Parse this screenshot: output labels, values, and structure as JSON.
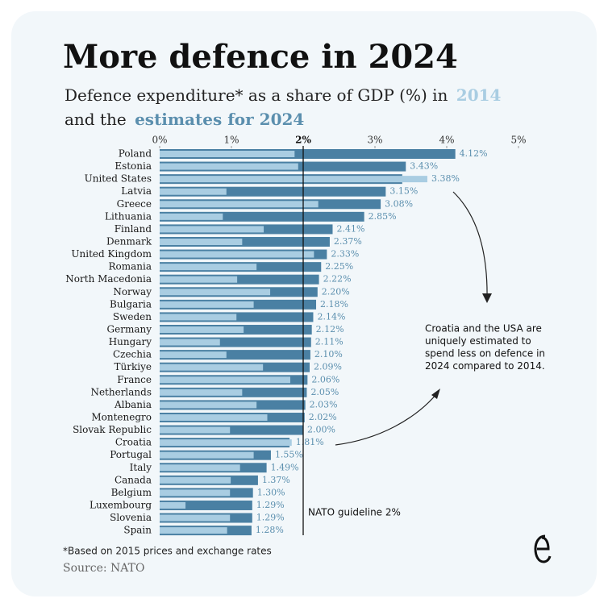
{
  "chart_data": {
    "type": "bar",
    "orientation": "horizontal",
    "title": "More defence in 2024",
    "subtitle": [
      "Defence expenditure* as a share of GDP (%) in",
      "and the"
    ],
    "categories": [
      "Poland",
      "Estonia",
      "United States",
      "Latvia",
      "Greece",
      "Lithuania",
      "Finland",
      "Denmark",
      "United Kingdom",
      "Romania",
      "North Macedonia",
      "Norway",
      "Bulgaria",
      "Sweden",
      "Germany",
      "Hungary",
      "Czechia",
      "Türkiye",
      "France",
      "Netherlands",
      "Albania",
      "Montenegro",
      "Slovak Republic",
      "Croatia",
      "Portugal",
      "Italy",
      "Canada",
      "Belgium",
      "Luxembourg",
      "Slovenia",
      "Spain"
    ],
    "series": [
      {
        "name": "2014",
        "color": "#a9cde2",
        "values": [
          1.88,
          1.93,
          3.73,
          0.93,
          2.21,
          0.88,
          1.45,
          1.15,
          2.15,
          1.35,
          1.08,
          1.54,
          1.31,
          1.07,
          1.17,
          0.84,
          0.93,
          1.44,
          1.82,
          1.15,
          1.35,
          1.5,
          0.98,
          1.84,
          1.31,
          1.12,
          0.99,
          0.98,
          0.36,
          0.98,
          0.94
        ]
      },
      {
        "name": "estimates for 2024",
        "color": "#4a80a3",
        "values": [
          4.12,
          3.43,
          3.38,
          3.15,
          3.08,
          2.85,
          2.41,
          2.37,
          2.33,
          2.25,
          2.22,
          2.2,
          2.18,
          2.14,
          2.12,
          2.11,
          2.1,
          2.09,
          2.06,
          2.05,
          2.03,
          2.02,
          2.0,
          1.81,
          1.55,
          1.49,
          1.37,
          1.3,
          1.29,
          1.29,
          1.28
        ],
        "value_labels": [
          "4.12%",
          "3.43%",
          "3.38%",
          "3.15%",
          "3.08%",
          "2.85%",
          "2.41%",
          "2.37%",
          "2.33%",
          "2.25%",
          "2.22%",
          "2.20%",
          "2.18%",
          "2.14%",
          "2.12%",
          "2.11%",
          "2.10%",
          "2.09%",
          "2.06%",
          "2.05%",
          "2.03%",
          "2.02%",
          "2.00%",
          "1.81%",
          "1.55%",
          "1.49%",
          "1.37%",
          "1.30%",
          "1.29%",
          "1.29%",
          "1.28%"
        ]
      }
    ],
    "xlim": [
      0,
      5
    ],
    "xticks": [
      {
        "value": 0,
        "label": "0%"
      },
      {
        "value": 1,
        "label": "1%"
      },
      {
        "value": 2,
        "label": "2%"
      },
      {
        "value": 3,
        "label": "3%"
      },
      {
        "value": 4,
        "label": "4%"
      },
      {
        "value": 5,
        "label": "5%"
      }
    ],
    "reference_line": {
      "value": 2,
      "label": "NATO guideline 2%"
    },
    "annotation": [
      "Croatia and the USA are",
      "uniquely estimated to",
      "spend less on defence in",
      "2024 compared to 2014."
    ],
    "footnote": "*Based on 2015 prices and exchange rates",
    "source": "Source: NATO"
  }
}
